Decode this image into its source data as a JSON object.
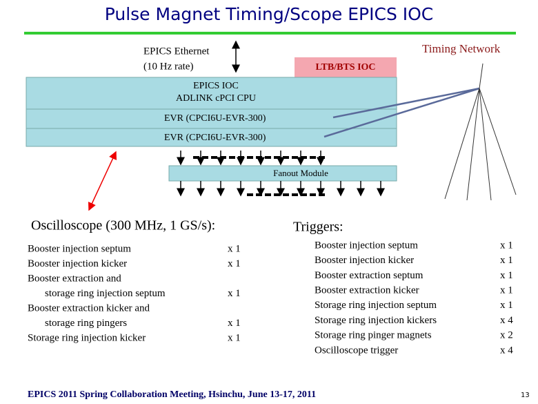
{
  "header": {
    "title": "Pulse Magnet Timing/Scope EPICS IOC"
  },
  "diagram": {
    "ethernet": [
      "EPICS Ethernet",
      "(10 Hz rate)"
    ],
    "ltb_bts_ioc": "LTB/BTS IOC",
    "timing_network": "Timing Network",
    "ioc_box": [
      "EPICS IOC",
      "ADLINK cPCI CPU"
    ],
    "evr_1": "EVR (CPCI6U-EVR-300)",
    "evr_2": "EVR (CPCI6U-EVR-300)",
    "fanout": "Fanout Module"
  },
  "oscilloscope": {
    "heading": "Oscilloscope (300 MHz, 1 GS/s):",
    "items": [
      {
        "lines": [
          "Booster injection septum"
        ],
        "count": "x 1"
      },
      {
        "lines": [
          "Booster injection kicker"
        ],
        "count": "x 1"
      },
      {
        "lines": [
          "Booster extraction and",
          "storage ring injection septum"
        ],
        "count": "x 1"
      },
      {
        "lines": [
          "Booster extraction kicker and",
          "storage ring pingers"
        ],
        "count": "x 1"
      },
      {
        "lines": [
          "Storage ring injection kicker"
        ],
        "count": "x 1"
      }
    ]
  },
  "triggers": {
    "heading": "Triggers:",
    "items": [
      {
        "label": "Booster injection septum",
        "count": "x 1"
      },
      {
        "label": "Booster injection kicker",
        "count": "x 1"
      },
      {
        "label": "Booster extraction septum",
        "count": "x 1"
      },
      {
        "label": "Booster extraction kicker",
        "count": "x 1"
      },
      {
        "label": "Storage ring injection septum",
        "count": "x 1"
      },
      {
        "label": "Storage ring injection kickers",
        "count": "x 4"
      },
      {
        "label": "Storage ring pinger magnets",
        "count": "x 2"
      },
      {
        "label": "Oscilloscope trigger",
        "count": "x 4"
      }
    ]
  },
  "footer": {
    "text": "EPICS 2011 Spring Collaboration Meeting, Hsinchu, June 13-17, 2011",
    "page": "13"
  }
}
